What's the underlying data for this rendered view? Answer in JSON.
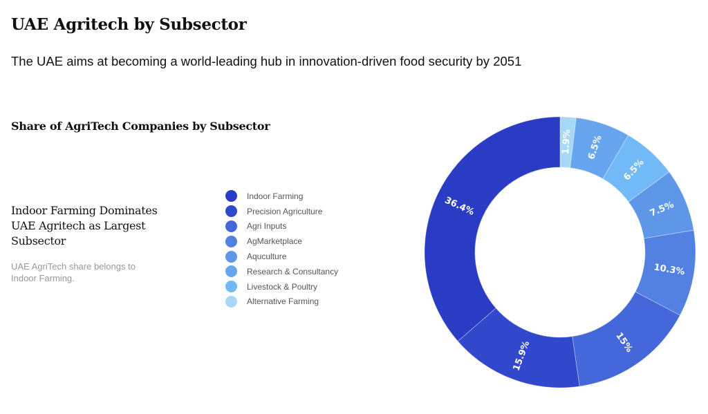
{
  "header": {
    "title": "UAE Agritech by Subsector",
    "subtitle": "The UAE aims at becoming a world-leading hub in innovation-driven food security by 2051"
  },
  "insight": {
    "heading": "Indoor Farming Dominates UAE Agritech as Largest Subsector",
    "note": "UAE AgriTech share belongs to Indoor Farming."
  },
  "chart_data": {
    "type": "pie",
    "variant": "donut",
    "title": "Share of AgriTech Companies by Subsector",
    "legend_position": "left",
    "unit": "%",
    "slices": [
      {
        "name": "Indoor Farming",
        "value": 36.4,
        "label": "36.4%",
        "color": "#2b3cc4"
      },
      {
        "name": "Precision Agriculture",
        "value": 15.9,
        "label": "15.9%",
        "color": "#3148cc"
      },
      {
        "name": "Agri Inputs",
        "value": 15,
        "label": "15%",
        "color": "#4467d9"
      },
      {
        "name": "AgMarketplace",
        "value": 10.3,
        "label": "10.3%",
        "color": "#5281e1"
      },
      {
        "name": "Aquculture",
        "value": 7.5,
        "label": "7.5%",
        "color": "#5e96e8"
      },
      {
        "name": "Research & Consultancy",
        "value": 6.5,
        "label": "6.5%",
        "color": "#67a5ef"
      },
      {
        "name": "Livestock & Poultry",
        "value": 6.5,
        "label": "6.5%",
        "color": "#72b9f7"
      },
      {
        "name": "Alternative Farming",
        "value": 1.9,
        "label": "1.9%",
        "color": "#a7d9f7"
      }
    ]
  }
}
